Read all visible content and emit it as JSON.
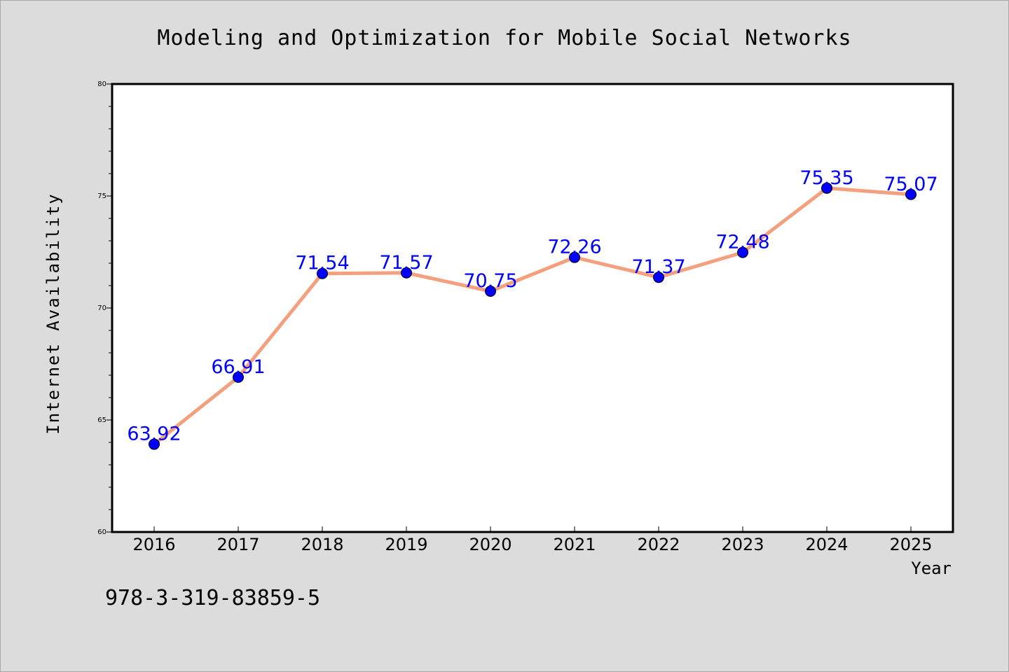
{
  "chart_data": {
    "type": "line",
    "title": "Modeling and Optimization for Mobile Social Networks",
    "xlabel": "Year",
    "ylabel": "Internet Availability",
    "categories": [
      "2016",
      "2017",
      "2018",
      "2019",
      "2020",
      "2021",
      "2022",
      "2023",
      "2024",
      "2025"
    ],
    "values": [
      63.92,
      66.91,
      71.54,
      71.57,
      70.75,
      72.26,
      71.37,
      72.48,
      75.35,
      75.07
    ],
    "data_labels": [
      "63.92",
      "66.91",
      "71.54",
      "71.57",
      "70.75",
      "72.26",
      "71.37",
      "72.48",
      "75.35",
      "75.07"
    ],
    "ylim": [
      60,
      80
    ],
    "yticks": [
      "60",
      "65",
      "70",
      "75",
      "80"
    ],
    "grid": false,
    "line_color": "#f4a07e",
    "marker_color": "#0000ff",
    "label_color": "#0000ff"
  },
  "footer": {
    "isbn": "978-3-319-83859-5"
  }
}
